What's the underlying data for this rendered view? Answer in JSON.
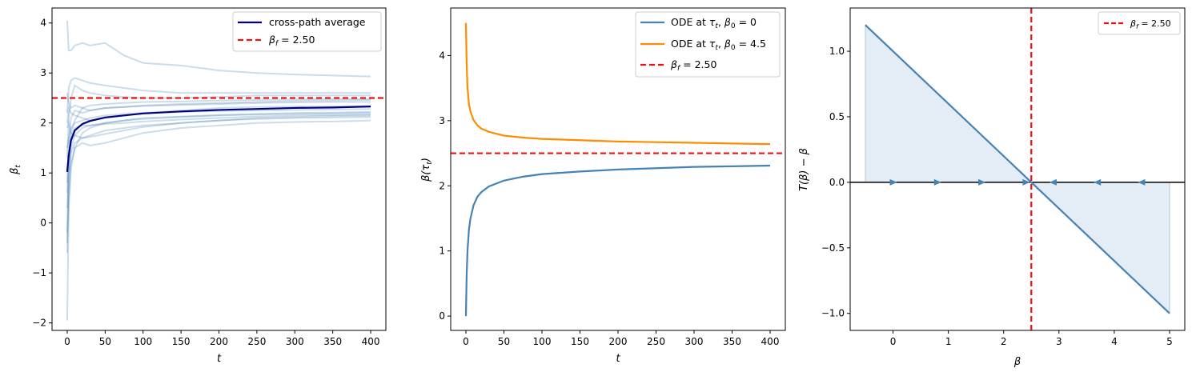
{
  "chart_data": [
    {
      "type": "line",
      "xlabel": "t",
      "ylabel": "β_t",
      "xlim": [
        -20,
        420
      ],
      "ylim": [
        -2.15,
        4.3
      ],
      "xticks": [
        0,
        50,
        100,
        150,
        200,
        250,
        300,
        350,
        400
      ],
      "yticks": [
        -2,
        -1,
        0,
        1,
        2,
        3,
        4
      ],
      "beta_f": 2.5,
      "legend_position": "top-right",
      "legend": [
        {
          "label": "cross-path average",
          "color": "#000080",
          "style": "solid"
        },
        {
          "label": "β_f = 2.50",
          "color": "#ee1111",
          "style": "dashed"
        }
      ],
      "series": [
        {
          "name": "cross-path average",
          "x": [
            0,
            2,
            5,
            10,
            20,
            30,
            50,
            75,
            100,
            150,
            200,
            250,
            300,
            350,
            400
          ],
          "values": [
            1.02,
            1.35,
            1.65,
            1.85,
            1.98,
            2.04,
            2.11,
            2.15,
            2.19,
            2.23,
            2.26,
            2.28,
            2.3,
            2.31,
            2.33
          ]
        },
        {
          "x": [
            0,
            2,
            5,
            10,
            20,
            30,
            50,
            75,
            100,
            150,
            200,
            250,
            300,
            350,
            400
          ],
          "values": [
            4.05,
            3.45,
            3.45,
            3.55,
            3.6,
            3.55,
            3.6,
            3.35,
            3.2,
            3.15,
            3.05,
            3.0,
            2.97,
            2.95,
            2.93
          ]
        },
        {
          "x": [
            0,
            2,
            5,
            10,
            20,
            30,
            50,
            75,
            100,
            150,
            200,
            250,
            300,
            350,
            400
          ],
          "values": [
            2.2,
            2.7,
            2.85,
            2.9,
            2.85,
            2.8,
            2.75,
            2.7,
            2.65,
            2.6,
            2.6,
            2.6,
            2.6,
            2.6,
            2.6
          ]
        },
        {
          "x": [
            0,
            2,
            5,
            10,
            20,
            30,
            50,
            75,
            100,
            150,
            200,
            250,
            300,
            350,
            400
          ],
          "values": [
            1.3,
            2.1,
            2.5,
            2.75,
            2.65,
            2.6,
            2.55,
            2.52,
            2.5,
            2.5,
            2.52,
            2.55,
            2.55,
            2.55,
            2.55
          ]
        },
        {
          "x": [
            0,
            2,
            5,
            10,
            20,
            30,
            50,
            75,
            100,
            150,
            200,
            250,
            300,
            350,
            400
          ],
          "values": [
            -0.4,
            1.2,
            1.8,
            2.05,
            2.3,
            2.35,
            2.38,
            2.4,
            2.42,
            2.43,
            2.45,
            2.46,
            2.47,
            2.48,
            2.48
          ]
        },
        {
          "x": [
            0,
            2,
            5,
            10,
            20,
            30,
            50,
            75,
            100,
            150,
            200,
            250,
            300,
            350,
            400
          ],
          "values": [
            0.8,
            1.6,
            2.1,
            2.25,
            2.2,
            2.25,
            2.3,
            2.32,
            2.34,
            2.36,
            2.38,
            2.4,
            2.41,
            2.42,
            2.42
          ]
        },
        {
          "x": [
            0,
            2,
            5,
            10,
            20,
            30,
            50,
            75,
            100,
            150,
            200,
            250,
            300,
            350,
            400
          ],
          "values": [
            -1.95,
            0.3,
            1.1,
            1.5,
            1.8,
            1.9,
            2.0,
            2.05,
            2.1,
            2.13,
            2.16,
            2.18,
            2.2,
            2.21,
            2.22
          ]
        },
        {
          "x": [
            0,
            2,
            5,
            10,
            20,
            30,
            50,
            75,
            100,
            150,
            200,
            250,
            300,
            350,
            400
          ],
          "values": [
            0.3,
            1.0,
            1.4,
            1.6,
            1.7,
            1.75,
            1.85,
            1.9,
            1.95,
            2.0,
            2.05,
            2.1,
            2.12,
            2.14,
            2.15
          ]
        },
        {
          "x": [
            0,
            2,
            5,
            10,
            20,
            30,
            50,
            75,
            100,
            150,
            200,
            250,
            300,
            350,
            400
          ],
          "values": [
            1.5,
            1.7,
            1.9,
            2.0,
            2.05,
            2.1,
            2.15,
            2.18,
            2.2,
            2.22,
            2.24,
            2.25,
            2.26,
            2.27,
            2.28
          ]
        },
        {
          "x": [
            0,
            2,
            5,
            10,
            20,
            30,
            50,
            75,
            100,
            150,
            200,
            250,
            300,
            350,
            400
          ],
          "values": [
            -0.6,
            0.5,
            1.2,
            1.5,
            1.6,
            1.55,
            1.6,
            1.7,
            1.8,
            1.9,
            1.95,
            2.0,
            2.02,
            2.03,
            2.05
          ]
        },
        {
          "x": [
            0,
            2,
            5,
            10,
            20,
            30,
            50,
            75,
            100,
            150,
            200,
            250,
            300,
            350,
            400
          ],
          "values": [
            2.0,
            2.3,
            2.2,
            2.15,
            2.1,
            2.05,
            2.1,
            2.15,
            2.2,
            2.25,
            2.3,
            2.32,
            2.33,
            2.33,
            2.34
          ]
        },
        {
          "x": [
            0,
            2,
            5,
            10,
            20,
            30,
            50,
            75,
            100,
            150,
            200,
            250,
            300,
            350,
            400
          ],
          "values": [
            0.6,
            1.3,
            1.7,
            1.9,
            1.95,
            1.95,
            2.0,
            2.05,
            2.08,
            2.12,
            2.15,
            2.17,
            2.18,
            2.19,
            2.2
          ]
        },
        {
          "x": [
            0,
            2,
            5,
            10,
            20,
            30,
            50,
            75,
            100,
            150,
            200,
            250,
            300,
            350,
            400
          ],
          "values": [
            2.6,
            2.4,
            2.3,
            2.35,
            2.3,
            2.25,
            2.3,
            2.32,
            2.35,
            2.38,
            2.4,
            2.42,
            2.44,
            2.45,
            2.46
          ]
        },
        {
          "x": [
            0,
            2,
            5,
            10,
            20,
            30,
            50,
            75,
            100,
            150,
            200,
            250,
            300,
            350,
            400
          ],
          "values": [
            -0.2,
            0.9,
            1.5,
            1.75,
            1.9,
            1.95,
            1.98,
            2.0,
            2.03,
            2.07,
            2.1,
            2.13,
            2.15,
            2.16,
            2.17
          ]
        },
        {
          "x": [
            0,
            2,
            5,
            10,
            20,
            30,
            50,
            75,
            100,
            150,
            200,
            250,
            300,
            350,
            400
          ],
          "values": [
            1.9,
            2.0,
            1.8,
            1.75,
            1.7,
            1.72,
            1.78,
            1.85,
            1.92,
            2.0,
            2.05,
            2.08,
            2.1,
            2.11,
            2.12
          ]
        }
      ]
    },
    {
      "type": "line",
      "xlabel": "t",
      "ylabel": "β(τ_t)",
      "xlim": [
        -20,
        420
      ],
      "ylim": [
        -0.22,
        4.73
      ],
      "xticks": [
        0,
        50,
        100,
        150,
        200,
        250,
        300,
        350,
        400
      ],
      "yticks": [
        0,
        1,
        2,
        3,
        4
      ],
      "beta_f": 2.5,
      "legend_position": "top-right",
      "legend": [
        {
          "label": "ODE at τ_t, β_0 = 0",
          "color": "#4682b4",
          "style": "solid"
        },
        {
          "label": "ODE at τ_t, β_0 = 4.5",
          "color": "#ff8c00",
          "style": "solid"
        },
        {
          "label": "β_f = 2.50",
          "color": "#ee1111",
          "style": "dashed"
        }
      ],
      "series": [
        {
          "name": "ODE at τ_t, β_0 = 0",
          "x": [
            0,
            1,
            2,
            4,
            6,
            10,
            15,
            20,
            30,
            50,
            75,
            100,
            150,
            200,
            250,
            300,
            350,
            400
          ],
          "values": [
            0.0,
            0.64,
            0.98,
            1.33,
            1.5,
            1.7,
            1.83,
            1.9,
            1.99,
            2.08,
            2.14,
            2.18,
            2.22,
            2.25,
            2.27,
            2.29,
            2.3,
            2.31
          ]
        },
        {
          "name": "ODE at τ_t, β_0 = 4.5",
          "x": [
            0,
            1,
            2,
            4,
            6,
            10,
            15,
            20,
            30,
            50,
            75,
            100,
            150,
            200,
            250,
            300,
            350,
            400
          ],
          "values": [
            4.5,
            3.86,
            3.52,
            3.25,
            3.14,
            3.01,
            2.93,
            2.88,
            2.83,
            2.77,
            2.74,
            2.72,
            2.7,
            2.68,
            2.67,
            2.66,
            2.65,
            2.64
          ]
        }
      ]
    },
    {
      "type": "line",
      "xlabel": "β",
      "ylabel": "T(β) − β",
      "xlim": [
        -0.775,
        5.275
      ],
      "ylim": [
        -1.13,
        1.33
      ],
      "xticks": [
        0,
        1,
        2,
        3,
        4,
        5
      ],
      "yticks": [
        -1.0,
        -0.5,
        0.0,
        0.5,
        1.0
      ],
      "beta_f": 2.5,
      "legend_position": "top-right",
      "legend": [
        {
          "label": "β_f = 2.50",
          "color": "#ee1111",
          "style": "dashed"
        }
      ],
      "series": [
        {
          "name": "T(β) − β",
          "x": [
            -0.5,
            5.0
          ],
          "values": [
            1.2,
            -1.0
          ]
        }
      ],
      "arrows": {
        "right": [
          0.0,
          0.8,
          1.6,
          2.4
        ],
        "left": [
          2.9,
          3.7,
          4.5
        ]
      }
    }
  ],
  "labels": {
    "panel1": {
      "xticks": [
        "0",
        "50",
        "100",
        "150",
        "200",
        "250",
        "300",
        "350",
        "400"
      ],
      "yticks": [
        "−2",
        "−1",
        "0",
        "1",
        "2",
        "3",
        "4"
      ],
      "xlabel": "t",
      "ylabel_base": "β",
      "ylabel_sub": "t",
      "legend_avg": "cross-path average",
      "legend_bf_base": "β",
      "legend_bf_sub": "f",
      "legend_bf_val": " = 2.50"
    },
    "panel2": {
      "xticks": [
        "0",
        "50",
        "100",
        "150",
        "200",
        "250",
        "300",
        "350",
        "400"
      ],
      "yticks": [
        "0",
        "1",
        "2",
        "3",
        "4"
      ],
      "xlabel": "t",
      "ylabel_base": "β(τ",
      "ylabel_sub": "t",
      "ylabel_end": ")",
      "legend1_a": "ODE at ",
      "legend1_tau": "τ",
      "legend1_tausub": "t",
      "legend1_b": ", ",
      "legend1_beta": "β",
      "legend1_betasub": "0",
      "legend1_val": " = 0",
      "legend2_a": "ODE at ",
      "legend2_tau": "τ",
      "legend2_tausub": "t",
      "legend2_b": ", ",
      "legend2_beta": "β",
      "legend2_betasub": "0",
      "legend2_val": " = 4.5",
      "legend_bf_base": "β",
      "legend_bf_sub": "f",
      "legend_bf_val": " = 2.50"
    },
    "panel3": {
      "xticks": [
        "0",
        "1",
        "2",
        "3",
        "4",
        "5"
      ],
      "yticks": [
        "−1.0",
        "−0.5",
        "0.0",
        "0.5",
        "1.0"
      ],
      "xlabel": "β",
      "ylabel": "T(β) − β",
      "legend_bf_base": "β",
      "legend_bf_sub": "f",
      "legend_bf_val": " = 2.50"
    }
  },
  "colors": {
    "path": "#4682b4",
    "average": "#000080",
    "ode_low": "#4682b4",
    "ode_high": "#ff8c00",
    "beta_f": "#ee1111",
    "fill": "#dbe6f2",
    "axis_zero": "#000000"
  }
}
